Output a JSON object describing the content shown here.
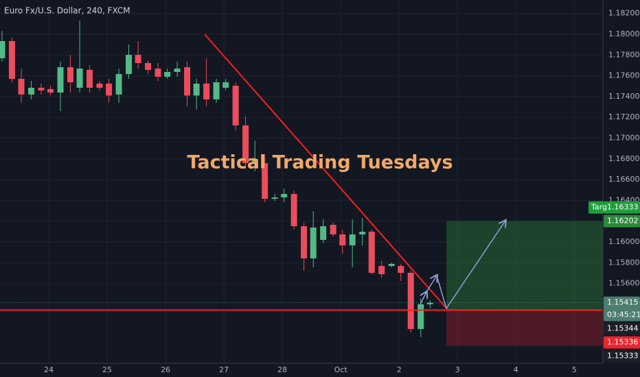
{
  "chart_data": {
    "type": "candlestick",
    "title": "Euro Fx/U.S. Dollar, 240, FXCM",
    "annotation": "Tactical Trading Tuesdays",
    "x": [
      -0.8,
      -0.63,
      -0.47,
      -0.3,
      -0.13,
      0.03,
      0.2,
      0.37,
      0.53,
      0.7,
      0.87,
      1.03,
      1.2,
      1.37,
      1.53,
      1.7,
      1.87,
      2.03,
      2.2,
      2.37,
      2.53,
      2.7,
      2.87,
      3.03,
      3.2,
      3.37,
      3.53,
      3.7,
      3.87,
      4.03,
      4.2,
      4.37,
      4.53,
      4.7,
      4.87,
      5.03,
      5.2,
      5.37,
      5.53,
      5.7,
      5.87,
      6.03,
      6.2,
      6.37,
      6.53
    ],
    "open": [
      1.17769,
      1.17934,
      1.17571,
      1.1742,
      1.17485,
      1.17472,
      1.17439,
      1.17683,
      1.17485,
      1.17657,
      1.17525,
      1.17525,
      1.1742,
      1.17617,
      1.17802,
      1.17723,
      1.1767,
      1.17591,
      1.17637,
      1.17683,
      1.1741,
      1.17525,
      1.17373,
      1.17485,
      1.17505,
      1.17122,
      1.16759,
      1.16759,
      1.16416,
      1.16429,
      1.16462,
      1.16152,
      1.15842,
      1.1602,
      1.16165,
      1.16073,
      1.15967,
      1.16073,
      1.16099,
      1.15769,
      1.15769,
      1.15769,
      1.15703,
      1.15162,
      1.154
    ],
    "high": [
      1.18033,
      1.17967,
      1.1767,
      1.17551,
      1.17525,
      1.17505,
      1.17736,
      1.17802,
      1.18132,
      1.17703,
      1.17551,
      1.17571,
      1.1767,
      1.17901,
      1.17934,
      1.17749,
      1.17723,
      1.1767,
      1.17736,
      1.17736,
      1.17571,
      1.17769,
      1.17571,
      1.17571,
      1.17538,
      1.17208,
      1.16977,
      1.16845,
      1.16462,
      1.16515,
      1.16495,
      1.16185,
      1.16297,
      1.16218,
      1.16185,
      1.16119,
      1.16218,
      1.16231,
      1.16119,
      1.1582,
      1.15802,
      1.15789,
      1.15723,
      1.15459,
      1.15439
    ],
    "low": [
      1.17736,
      1.17538,
      1.1734,
      1.17373,
      1.1742,
      1.1741,
      1.17261,
      1.17439,
      1.17439,
      1.17439,
      1.17459,
      1.1734,
      1.1734,
      1.17571,
      1.1767,
      1.17617,
      1.17551,
      1.17571,
      1.17591,
      1.17307,
      1.17274,
      1.17307,
      1.1734,
      1.17459,
      1.17076,
      1.16713,
      1.1668,
      1.16383,
      1.16396,
      1.16383,
      1.16119,
      1.15723,
      1.15756,
      1.15987,
      1.1605,
      1.15888,
      1.15756,
      1.15967,
      1.1569,
      1.15657,
      1.15756,
      1.15624,
      1.15129,
      1.15083,
      1.1536
    ],
    "close": [
      1.17934,
      1.17571,
      1.1742,
      1.17485,
      1.17459,
      1.17439,
      1.17683,
      1.17538,
      1.1767,
      1.17485,
      1.17485,
      1.1741,
      1.17617,
      1.17802,
      1.17723,
      1.17657,
      1.17591,
      1.17637,
      1.1767,
      1.1741,
      1.17525,
      1.17373,
      1.17538,
      1.17538,
      1.17122,
      1.16759,
      1.16799,
      1.16416,
      1.16429,
      1.16462,
      1.16152,
      1.15842,
      1.16139,
      1.16152,
      1.16073,
      1.15967,
      1.16073,
      1.16099,
      1.15703,
      1.1569,
      1.15789,
      1.15703,
      1.15162,
      1.154,
      1.15415
    ],
    "up_color": "#53b987",
    "down_color": "#eb4d5c",
    "xlim": [
      -0.835,
      9.49
    ],
    "xticks": [
      {
        "value": 0,
        "label": "24"
      },
      {
        "value": 1,
        "label": "25"
      },
      {
        "value": 2,
        "label": "26"
      },
      {
        "value": 3,
        "label": "27"
      },
      {
        "value": 4,
        "label": "28"
      },
      {
        "value": 5,
        "label": "Oct"
      },
      {
        "value": 6,
        "label": "2"
      },
      {
        "value": 7,
        "label": "3"
      },
      {
        "value": 8,
        "label": "4"
      },
      {
        "value": 9,
        "label": "5"
      }
    ],
    "ylim": [
      1.14832,
      1.1833
    ],
    "yticks": [
      {
        "value": 1.182,
        "label": "1.18200"
      },
      {
        "value": 1.18,
        "label": "1.18000"
      },
      {
        "value": 1.178,
        "label": "1.17800"
      },
      {
        "value": 1.176,
        "label": "1.17600"
      },
      {
        "value": 1.174,
        "label": "1.17400"
      },
      {
        "value": 1.172,
        "label": "1.17200"
      },
      {
        "value": 1.17,
        "label": "1.17000"
      },
      {
        "value": 1.168,
        "label": "1.16800"
      },
      {
        "value": 1.166,
        "label": "1.16600"
      },
      {
        "value": 1.164,
        "label": "1.16400"
      },
      {
        "value": 1.162,
        "label": "1.16200"
      },
      {
        "value": 1.16,
        "label": "1.16000"
      },
      {
        "value": 1.158,
        "label": "1.15800"
      },
      {
        "value": 1.156,
        "label": "1.15600"
      }
    ],
    "grid": true,
    "trend_line": {
      "x": [
        2.67,
        6.84
      ],
      "y": [
        1.18,
        1.15344
      ],
      "color": "#ff1e1e"
    },
    "support_line": {
      "value": 1.15344,
      "color": "#ff1e1e"
    },
    "position": {
      "x_start": 6.81,
      "x_end": 9.49,
      "target": 1.16202,
      "entry": 1.15344,
      "stop": 1.15
    },
    "target_label": "Targ",
    "countdown": "03:45:21",
    "price_tags": [
      {
        "value": 1.16333,
        "color": "#1e9e3a"
      },
      {
        "value": 1.16202,
        "color": "#2c8a3c"
      },
      {
        "value": 1.15415,
        "color": "#4d7d70"
      },
      {
        "value": 1.15344,
        "color": "#1c1f28"
      },
      {
        "value": 1.15336,
        "color": "#e8262e"
      },
      {
        "value": 1.15333,
        "color": "#1c1f28"
      }
    ]
  }
}
